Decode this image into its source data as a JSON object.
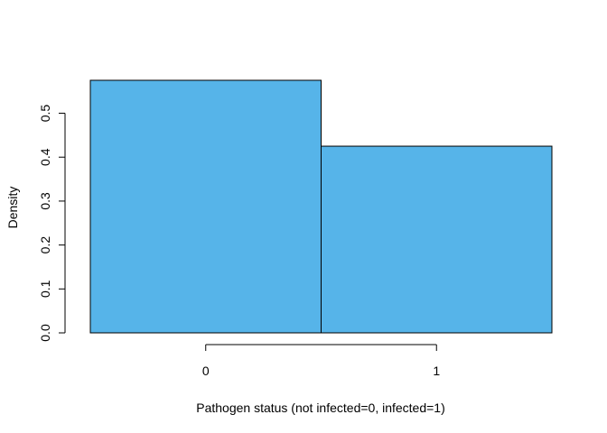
{
  "chart_data": {
    "type": "bar",
    "subtype": "histogram",
    "title": "",
    "xlabel": "Pathogen status (not infected=0, infected=1)",
    "ylabel": "Density",
    "bins": [
      {
        "left": -0.5,
        "right": 0.5,
        "density": 0.575
      },
      {
        "left": 0.5,
        "right": 1.5,
        "density": 0.425
      }
    ],
    "x_ticks": [
      0,
      1
    ],
    "x_tick_labels": [
      "0",
      "1"
    ],
    "y_ticks": [
      0.0,
      0.1,
      0.2,
      0.3,
      0.4,
      0.5
    ],
    "y_tick_labels": [
      "0.0",
      "0.1",
      "0.2",
      "0.3",
      "0.4",
      "0.5"
    ],
    "xlim": [
      -0.5,
      1.5
    ],
    "ylim": [
      0,
      0.575
    ],
    "grid": false,
    "bar_color": "#56B4E9",
    "edge_color": "#000000"
  }
}
